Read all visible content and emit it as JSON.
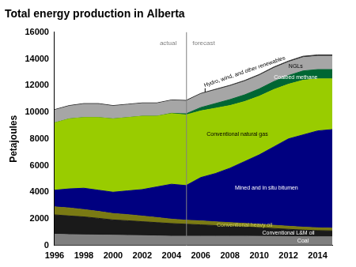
{
  "chart_data": {
    "type": "area",
    "title": "Total energy production in Alberta",
    "y_label": "Petajoules",
    "x": [
      1996,
      1997,
      1998,
      1999,
      2000,
      2001,
      2002,
      2003,
      2004,
      2005,
      2006,
      2007,
      2008,
      2009,
      2010,
      2011,
      2012,
      2013,
      2014,
      2015
    ],
    "xlim": [
      1996,
      2015
    ],
    "xticks": [
      1996,
      1998,
      2000,
      2002,
      2004,
      2006,
      2008,
      2010,
      2012,
      2014
    ],
    "ylim": [
      0,
      16000
    ],
    "yticks": [
      0,
      2000,
      4000,
      6000,
      8000,
      10000,
      12000,
      14000,
      16000
    ],
    "stacked": true,
    "grid": false,
    "divider": {
      "x": 2005,
      "left_label": "actual",
      "right_label": "forecast"
    },
    "series": [
      {
        "name": "Coal",
        "color": "#7f7f7f",
        "values": [
          850,
          820,
          800,
          790,
          770,
          760,
          740,
          720,
          700,
          700,
          700,
          700,
          700,
          700,
          690,
          680,
          670,
          660,
          650,
          650
        ]
      },
      {
        "name": "Conventional L&M oil",
        "color": "#1a1a1a",
        "values": [
          1450,
          1400,
          1350,
          1250,
          1150,
          1100,
          1050,
          1000,
          950,
          900,
          850,
          800,
          750,
          700,
          650,
          600,
          550,
          500,
          470,
          450
        ]
      },
      {
        "name": "Conventional heavy oil",
        "color": "#7a7a14",
        "values": [
          600,
          600,
          550,
          520,
          480,
          460,
          420,
          380,
          330,
          300,
          300,
          280,
          270,
          260,
          250,
          240,
          230,
          220,
          210,
          200
        ]
      },
      {
        "name": "Mined and in situ bitumen",
        "color": "#000080",
        "values": [
          1250,
          1430,
          1600,
          1590,
          1600,
          1780,
          1990,
          2300,
          2620,
          2600,
          3250,
          3620,
          4080,
          4640,
          5210,
          5880,
          6550,
          6920,
          7270,
          7400
        ]
      },
      {
        "name": "Conventional natural gas",
        "color": "#99cc00",
        "values": [
          5050,
          5250,
          5300,
          5450,
          5500,
          5500,
          5500,
          5300,
          5300,
          5300,
          5000,
          4900,
          4700,
          4500,
          4400,
          4300,
          4100,
          4100,
          3900,
          3800
        ]
      },
      {
        "name": "Coalbed methane",
        "color": "#006633",
        "values": [
          0,
          0,
          0,
          0,
          0,
          0,
          0,
          0,
          20,
          80,
          250,
          350,
          450,
          500,
          550,
          600,
          650,
          700,
          700,
          700
        ]
      },
      {
        "name": "NGLs",
        "color": "#a6a6a6",
        "values": [
          950,
          950,
          1000,
          1000,
          950,
          950,
          950,
          950,
          950,
          950,
          1000,
          1000,
          1000,
          1000,
          1000,
          1000,
          1000,
          1000,
          1000,
          1000
        ]
      },
      {
        "name": "Hydro, wind, and other renewables",
        "color": "#333333",
        "values": [
          50,
          50,
          50,
          50,
          50,
          50,
          50,
          50,
          50,
          60,
          60,
          70,
          70,
          80,
          80,
          90,
          90,
          100,
          100,
          100
        ]
      }
    ]
  }
}
